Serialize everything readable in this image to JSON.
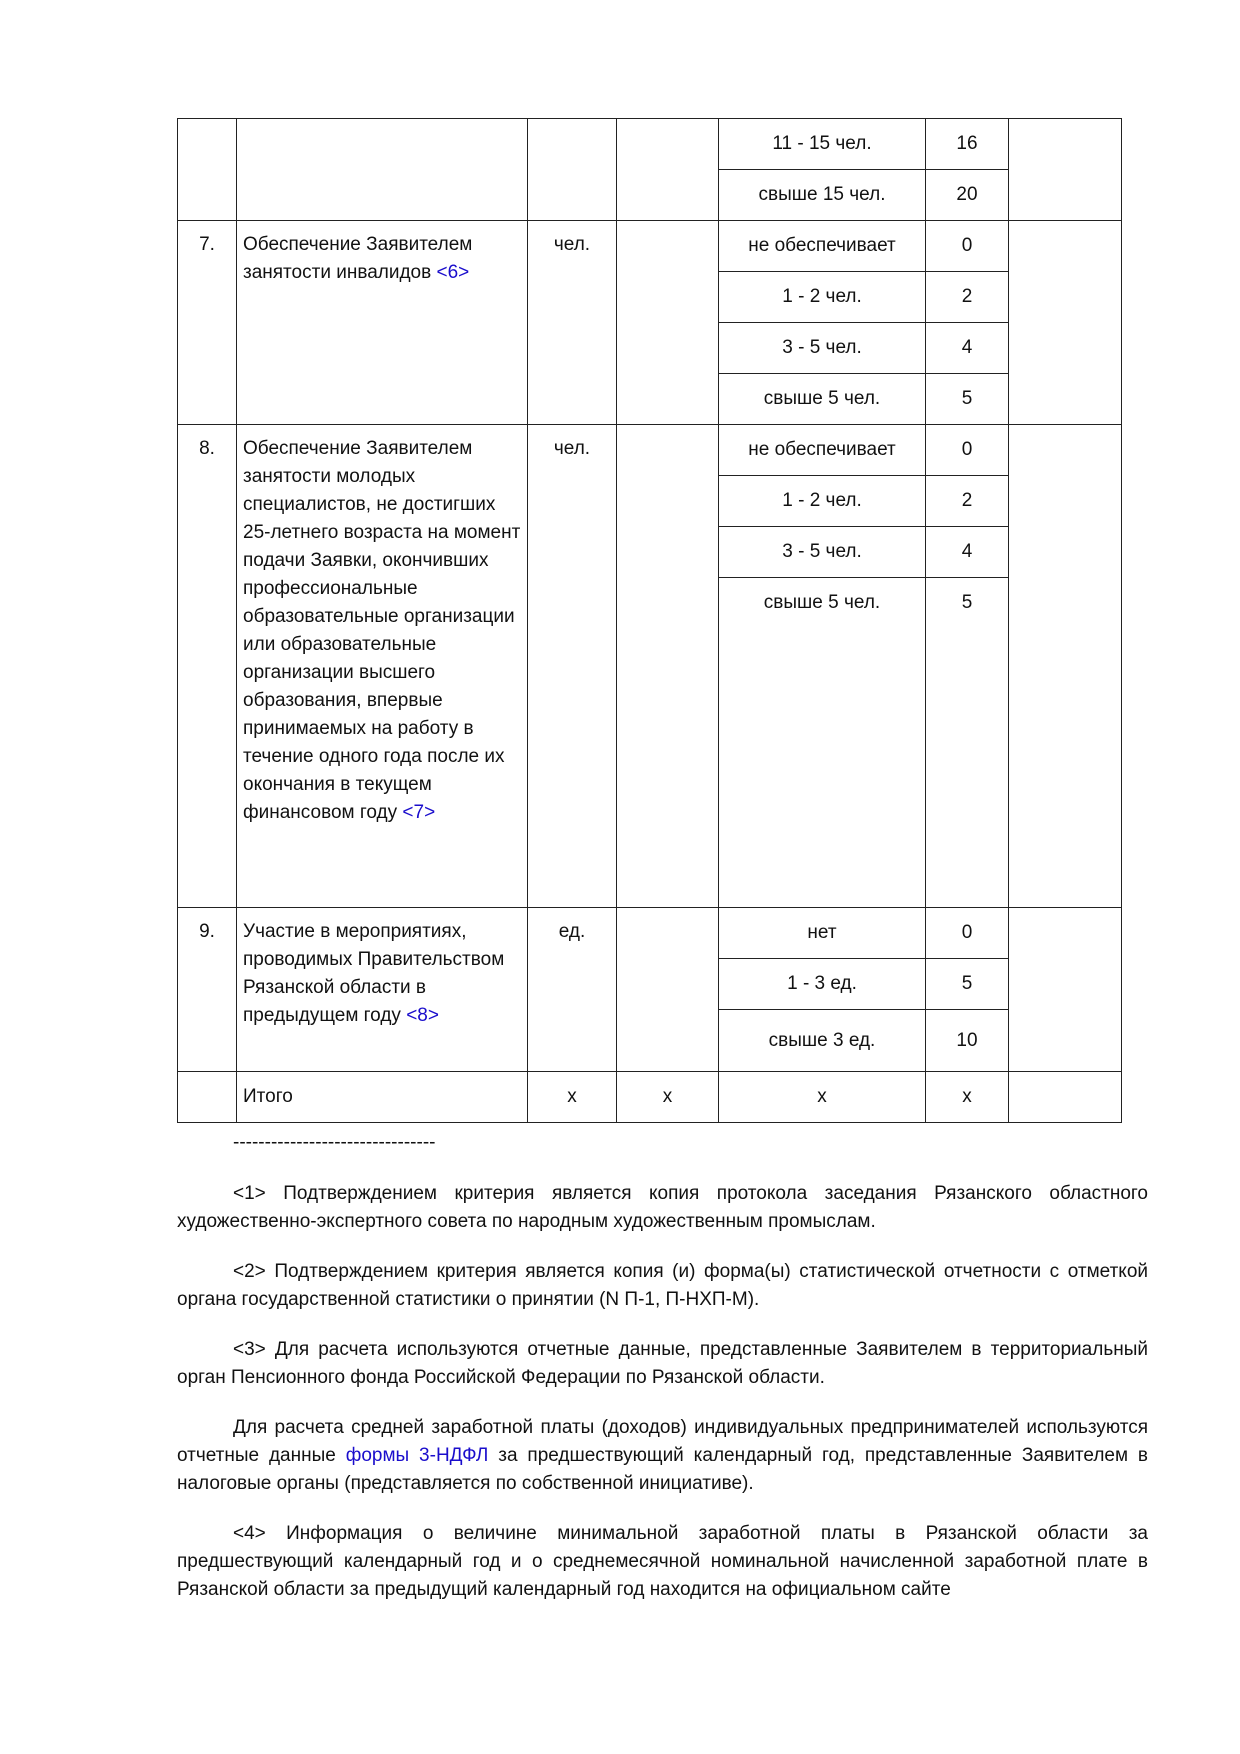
{
  "table": {
    "rows": [
      {
        "num": "",
        "title": "",
        "link": "",
        "unit": "",
        "opts": [
          [
            "11 - 15 чел.",
            "16"
          ],
          [
            "свыше 15 чел.",
            "20"
          ]
        ]
      },
      {
        "num": "7.",
        "title": "Обеспечение Заявителем занятости инвалидов ",
        "link": "<6>",
        "unit": "чел.",
        "opts": [
          [
            "не обеспечивает",
            "0"
          ],
          [
            "1 - 2 чел.",
            "2"
          ],
          [
            "3 - 5 чел.",
            "4"
          ],
          [
            "свыше 5 чел.",
            "5"
          ]
        ]
      },
      {
        "num": "8.",
        "title": "Обеспечение Заявителем занятости молодых специалистов, не достигших 25-летнего возраста на момент подачи Заявки, окончивших профессиональные образовательные организации или образовательные организации высшего образования, впервые принимаемых на работу в течение одного года после их окончания в текущем финансовом году ",
        "link": "<7>",
        "unit": "чел.",
        "opts": [
          [
            "не обеспечивает",
            "0"
          ],
          [
            "1 - 2 чел.",
            "2"
          ],
          [
            "3 - 5 чел.",
            "4"
          ],
          [
            "свыше 5 чел.",
            "5"
          ]
        ]
      },
      {
        "num": "9.",
        "title": "Участие в мероприятиях, проводимых Правительством Рязанской области в предыдущем году ",
        "link": "<8>",
        "unit": "ед.",
        "opts": [
          [
            "нет",
            "0"
          ],
          [
            "1 - 3 ед.",
            "5"
          ],
          [
            "свыше 3 ед.",
            "10"
          ]
        ]
      }
    ],
    "total": {
      "label": "Итого",
      "c3": "x",
      "c4": "x",
      "c5": "x",
      "c6": "x"
    }
  },
  "separator": "--------------------------------",
  "notes": {
    "n1": "<1> Подтверждением критерия является копия протокола заседания Рязанского областного художественно-экспертного совета по народным художественным промыслам.",
    "n2": "<2> Подтверждением критерия является копия (и) форма(ы) статистической отчетности с отметкой органа государственной статистики о принятии (N П-1, П-НХП-М).",
    "n3": "<3> Для расчета используются отчетные данные, представленные Заявителем в территориальный орган Пенсионного фонда Российской Федерации по Рязанской области.",
    "n3b_pre": "Для расчета средней заработной платы (доходов) индивидуальных предпринимателей используются отчетные данные ",
    "n3b_link": "формы 3-НДФЛ",
    "n3b_post": " за предшествующий календарный год, представленные Заявителем в налоговые органы (представляется по собственной инициативе).",
    "n4": "<4> Информация о величине минимальной заработной платы в Рязанской области за предшествующий календарный год и о среднемесячной номинальной начисленной заработной плате в Рязанской области за предыдущий календарный год находится на официальном сайте"
  }
}
